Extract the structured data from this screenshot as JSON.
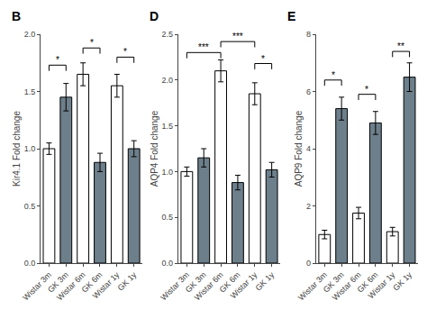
{
  "chart_data": [
    {
      "type": "bar",
      "title": "B",
      "ylabel": "Kir4.1 Fold change",
      "categories": [
        "Wistar 3m",
        "GK 3m",
        "Wistar 6m",
        "GK 6m",
        "Wistar 1y",
        "GK 1y"
      ],
      "values": [
        1.0,
        1.45,
        1.65,
        0.88,
        1.55,
        1.0
      ],
      "errors": [
        0.05,
        0.12,
        0.1,
        0.08,
        0.1,
        0.07
      ],
      "colors": [
        "white",
        "#6d7f8b",
        "white",
        "#6d7f8b",
        "white",
        "#6d7f8b"
      ],
      "ylim": [
        0,
        2.0
      ],
      "yticks": [
        {
          "value": 0,
          "label": "0.0"
        },
        0.5,
        {
          "value": 1,
          "label": "1.0"
        },
        1.5,
        {
          "value": 2,
          "label": "2.0"
        }
      ],
      "grid": false,
      "significance": [
        {
          "from": "Wistar 3m",
          "to": "GK 3m",
          "y": 1.73,
          "label": "*"
        },
        {
          "from": "Wistar 6m",
          "to": "GK 6m",
          "y": 1.88,
          "label": "*"
        },
        {
          "from": "Wistar 1y",
          "to": "GK 1y",
          "y": 1.8,
          "label": "*"
        }
      ]
    },
    {
      "type": "bar",
      "title": "D",
      "ylabel": "AQP4 Fold change",
      "categories": [
        "Wistar 3m",
        "GK 3m",
        "Wistar 6m",
        "GK 6m",
        "Wistar 1y",
        "GK 1y"
      ],
      "values": [
        1.0,
        1.15,
        2.1,
        0.88,
        1.85,
        1.02
      ],
      "errors": [
        0.05,
        0.1,
        0.12,
        0.08,
        0.12,
        0.08
      ],
      "colors": [
        "white",
        "#6d7f8b",
        "white",
        "#6d7f8b",
        "white",
        "#6d7f8b"
      ],
      "ylim": [
        0,
        2.5
      ],
      "yticks": [
        {
          "value": 0,
          "label": "0.0"
        },
        0.5,
        {
          "value": 1,
          "label": "1.0"
        },
        1.5,
        {
          "value": 2,
          "label": "2.0"
        },
        2.5
      ],
      "grid": false,
      "significance": [
        {
          "from": "Wistar 3m",
          "to": "Wistar 6m",
          "y": 2.3,
          "label": "***"
        },
        {
          "from": "Wistar 6m",
          "to": "Wistar 1y",
          "y": 2.42,
          "label": "***"
        },
        {
          "from": "Wistar 1y",
          "to": "GK 1y",
          "y": 2.18,
          "label": "*"
        }
      ]
    },
    {
      "type": "bar",
      "title": "E",
      "ylabel": "AQP9 Fold change",
      "categories": [
        "Wistar 3m",
        "GK 3m",
        "Wistar 6m",
        "GK 6m",
        "Wistar 1y",
        "GK 1y"
      ],
      "values": [
        1.0,
        5.4,
        1.75,
        4.9,
        1.1,
        6.5
      ],
      "errors": [
        0.15,
        0.4,
        0.2,
        0.4,
        0.15,
        0.5
      ],
      "colors": [
        "white",
        "#6d7f8b",
        "white",
        "#6d7f8b",
        "white",
        "#6d7f8b"
      ],
      "ylim": [
        0,
        8
      ],
      "yticks": [
        0,
        2,
        4,
        6,
        8
      ],
      "grid": false,
      "significance": [
        {
          "from": "Wistar 3m",
          "to": "GK 3m",
          "y": 6.4,
          "label": "*"
        },
        {
          "from": "Wistar 6m",
          "to": "GK 6m",
          "y": 5.9,
          "label": "*"
        },
        {
          "from": "Wistar 1y",
          "to": "GK 1y",
          "y": 7.4,
          "label": "**"
        }
      ]
    }
  ]
}
